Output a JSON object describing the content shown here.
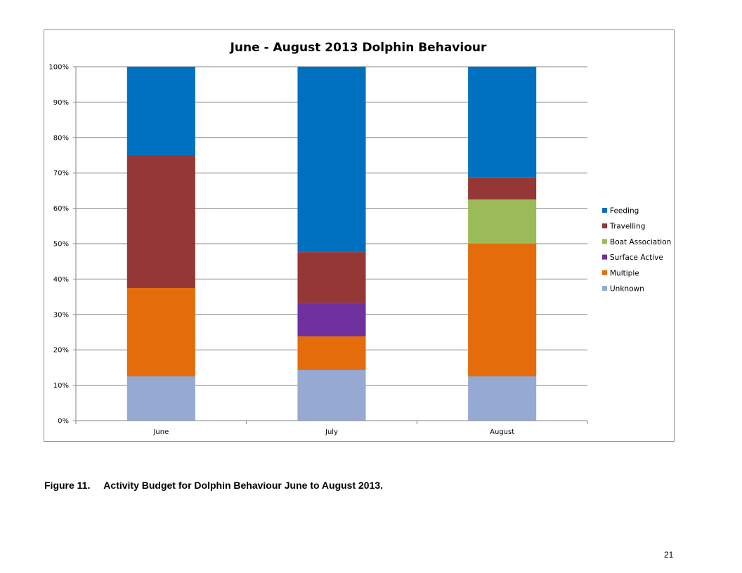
{
  "chart_data": {
    "type": "bar",
    "stacked": true,
    "normalized": true,
    "title": "June - August 2013 Dolphin Behaviour",
    "categories": [
      "June",
      "July",
      "August"
    ],
    "y_ticks": [
      "0%",
      "10%",
      "20%",
      "30%",
      "40%",
      "50%",
      "60%",
      "70%",
      "80%",
      "90%",
      "100%"
    ],
    "ylim": [
      0,
      100
    ],
    "grid": true,
    "legend_position": "right",
    "series": [
      {
        "name": "Unknown",
        "color": "#95A9D3",
        "values": [
          12.5,
          14.3,
          12.5
        ]
      },
      {
        "name": "Multiple",
        "color": "#E46C0A",
        "values": [
          25,
          9.5,
          37.5
        ]
      },
      {
        "name": "Surface Active",
        "color": "#7030A0",
        "values": [
          0,
          9.5,
          0
        ]
      },
      {
        "name": "Boat Association",
        "color": "#9BBB59",
        "values": [
          0,
          0,
          12.5
        ]
      },
      {
        "name": "Travelling",
        "color": "#953735",
        "values": [
          37.5,
          14.3,
          6.3
        ]
      },
      {
        "name": "Feeding",
        "color": "#0070C0",
        "values": [
          25,
          52.4,
          31.2
        ]
      }
    ],
    "legend_order": [
      "Feeding",
      "Travelling",
      "Boat Association",
      "Surface Active",
      "Multiple",
      "Unknown"
    ]
  },
  "caption": {
    "number": "Figure 11.",
    "text": "Activity Budget for Dolphin Behaviour June to August 2013."
  },
  "page_number": "21"
}
